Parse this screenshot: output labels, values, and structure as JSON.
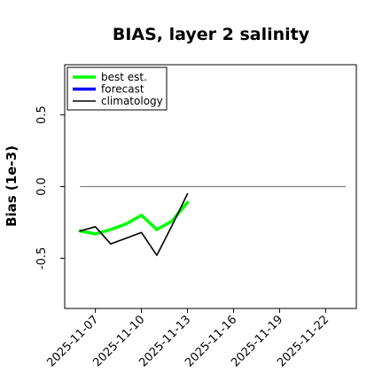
{
  "chart_data": {
    "type": "line",
    "title": "BIAS, layer 2 salinity",
    "ylabel": "Bias (1e-3)",
    "xlabel": "",
    "xlim": [
      "2025-11-05",
      "2025-11-24"
    ],
    "ylim": [
      -0.85,
      0.85
    ],
    "yticks": [
      -0.5,
      0.0,
      0.5
    ],
    "ytick_labels": [
      "-0.5",
      "0.0",
      "0.5"
    ],
    "xticks": [
      "2025-11-07",
      "2025-11-10",
      "2025-11-13",
      "2025-11-16",
      "2025-11-19",
      "2025-11-22"
    ],
    "xtick_labels": [
      "2025-11-07",
      "2025-11-10",
      "2025-11-13",
      "2025-11-16",
      "2025-11-19",
      "2025-11-22"
    ],
    "highlighted_xtick": "2025-11-13",
    "highlight_color": "#228B22",
    "zero_line": true,
    "zero_line_color": "#808080",
    "legend_position": "top-left",
    "series": [
      {
        "name": "best est.",
        "color": "#00ff00",
        "line_width": "thick",
        "x": [
          "2025-11-06",
          "2025-11-07",
          "2025-11-08",
          "2025-11-09",
          "2025-11-10",
          "2025-11-11",
          "2025-11-12",
          "2025-11-13"
        ],
        "y": [
          -0.31,
          -0.33,
          -0.3,
          -0.26,
          -0.2,
          -0.3,
          -0.24,
          -0.11
        ]
      },
      {
        "name": "forecast",
        "color": "#0000ff",
        "line_width": "thick",
        "x": [],
        "y": []
      },
      {
        "name": "climatology",
        "color": "#000000",
        "line_width": "thin",
        "x": [
          "2025-11-06",
          "2025-11-07",
          "2025-11-08",
          "2025-11-09",
          "2025-11-10",
          "2025-11-11",
          "2025-11-12",
          "2025-11-13"
        ],
        "y": [
          -0.31,
          -0.28,
          -0.4,
          -0.36,
          -0.32,
          -0.48,
          -0.27,
          -0.05
        ]
      }
    ]
  }
}
